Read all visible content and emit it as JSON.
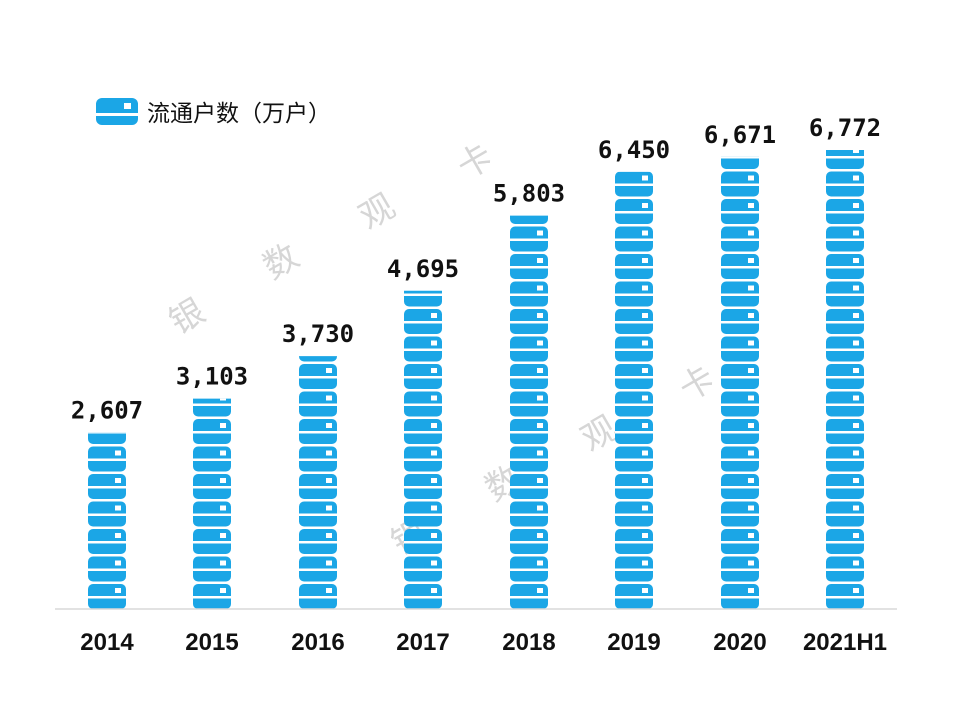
{
  "chart_data": {
    "type": "bar",
    "categories": [
      "2014",
      "2015",
      "2016",
      "2017",
      "2018",
      "2019",
      "2020",
      "2021H1"
    ],
    "series": [
      {
        "name": "流通户数（万户）",
        "values": [
          2607,
          3103,
          3730,
          4695,
          5803,
          6450,
          6671,
          6772
        ]
      }
    ],
    "data_labels": [
      "2,607",
      "3,103",
      "3,730",
      "4,695",
      "5,803",
      "6,450",
      "6,671",
      "6,772"
    ],
    "legend_position": "top-left",
    "grid": false,
    "ylim": [
      0,
      7000
    ],
    "bar_style": "stacked card pictogram",
    "colors": {
      "bar": "#1BA6E6",
      "card_chip": "#ffffff",
      "axis": "#d9d9d9",
      "text": "#111111",
      "watermark": "#c9c9c9"
    }
  },
  "watermark": [
    "银",
    "数",
    "观",
    "卡",
    "银",
    "数",
    "观",
    "卡"
  ],
  "legend_icon": "card-icon"
}
